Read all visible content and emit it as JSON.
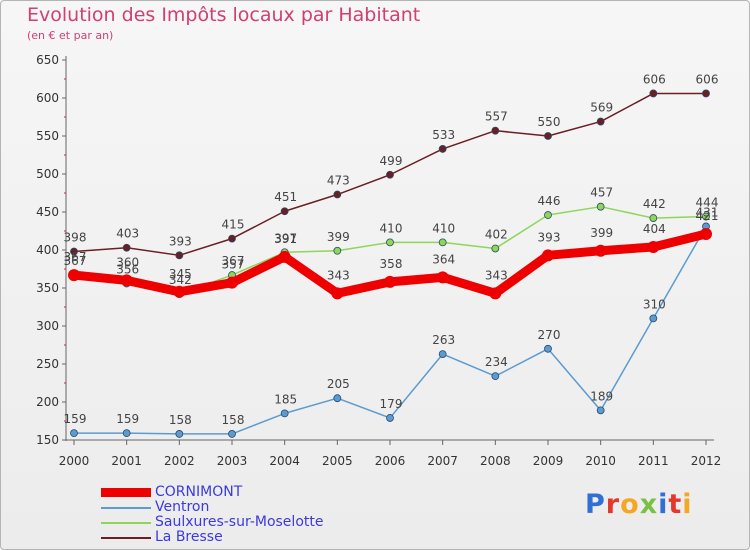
{
  "header": {
    "title": "Evolution des Impôts locaux par Habitant",
    "subtitle": "(en € et par an)"
  },
  "logo": {
    "text": "Proxiti"
  },
  "chart_data": {
    "type": "line",
    "title": "Evolution des Impôts locaux par Habitant",
    "subtitle": "(en € et par an)",
    "xlabel": "",
    "ylabel": "",
    "x": [
      "2000",
      "2001",
      "2002",
      "2003",
      "2004",
      "2005",
      "2006",
      "2007",
      "2008",
      "2009",
      "2010",
      "2011",
      "2012"
    ],
    "ylim": [
      150,
      650
    ],
    "yticks": [
      150,
      200,
      250,
      300,
      350,
      400,
      450,
      500,
      550,
      600,
      650
    ],
    "grid": false,
    "legend_position": "bottom-left",
    "series": [
      {
        "name": "La Bresse",
        "color": "#6b1e24",
        "values": [
          398,
          403,
          393,
          415,
          451,
          473,
          499,
          533,
          557,
          550,
          569,
          606,
          606
        ]
      },
      {
        "name": "Saulxures-sur-Moselotte",
        "color": "#8ed65a",
        "values": [
          367,
          356,
          342,
          367,
          397,
          399,
          410,
          410,
          402,
          446,
          457,
          442,
          444
        ]
      },
      {
        "name": "Ventron",
        "color": "#5b9bd0",
        "values": [
          159,
          159,
          158,
          158,
          185,
          205,
          179,
          263,
          234,
          270,
          189,
          310,
          431
        ]
      },
      {
        "name": "CORNIMONT",
        "color": "#ee0000",
        "values": [
          367,
          360,
          345,
          357,
          391,
          343,
          358,
          364,
          343,
          393,
          399,
          404,
          421
        ]
      }
    ]
  }
}
